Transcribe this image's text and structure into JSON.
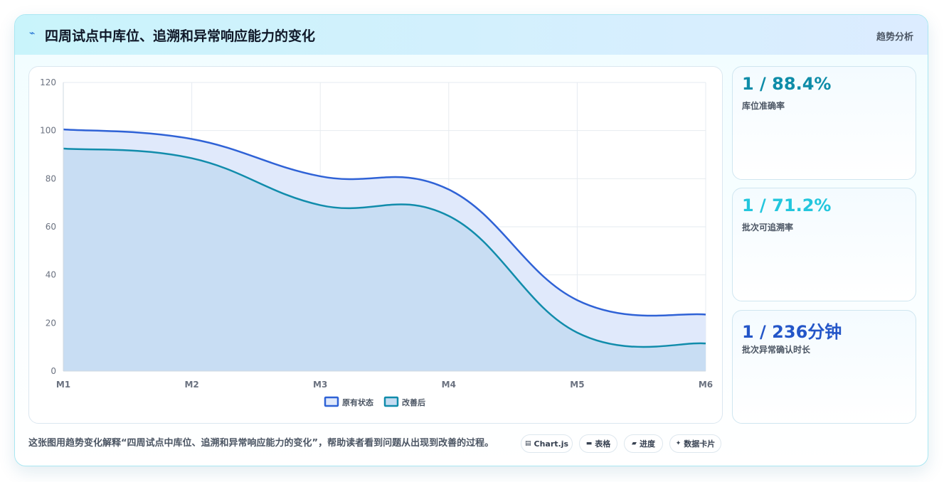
{
  "header": {
    "icon": "sparkle-icon",
    "title": "四周试点中库位、追溯和异常响应能力的变化",
    "tag": "趋势分析"
  },
  "chart_data": {
    "type": "area",
    "title": "",
    "xlabel": "",
    "ylabel": "",
    "categories": [
      "M1",
      "M2",
      "M3",
      "M4",
      "M5",
      "M6"
    ],
    "ylim": [
      0,
      120
    ],
    "yticks": [
      0,
      20,
      40,
      60,
      80,
      100,
      120
    ],
    "grid": true,
    "legend": "bottom",
    "series": [
      {
        "name": "原有状态",
        "values": [
          100.5,
          96.5,
          81,
          75.5,
          29.5,
          23.5
        ],
        "color": "#2f62d6",
        "fill": "#e0e9fb"
      },
      {
        "name": "改善后",
        "values": [
          92.5,
          88.5,
          69,
          64.5,
          16,
          11.5
        ],
        "color": "#118cab",
        "fill": "#c5dcf2"
      }
    ]
  },
  "kpis": [
    {
      "value": "1 / 88.4%",
      "label": "库位准确率",
      "color": "#0e8ca8"
    },
    {
      "value": "1 / 71.2%",
      "label": "批次可追溯率",
      "color": "#23c6dd"
    },
    {
      "value": "1 / 236分钟",
      "label": "批次异常确认时长",
      "color": "#2456c8"
    }
  ],
  "footer": {
    "description": "这张图用趋势变化解释“四周试点中库位、追溯和异常响应能力的变化”，帮助读者看到问题从出现到改善的过程。",
    "chips": [
      {
        "icon": "chart-icon",
        "glyph": "▤",
        "label": "Chart.js"
      },
      {
        "icon": "table-icon",
        "glyph": "▬",
        "label": "表格"
      },
      {
        "icon": "progress-icon",
        "glyph": "▰",
        "label": "进度"
      },
      {
        "icon": "sparkle-icon",
        "glyph": "✦",
        "label": "数据卡片"
      }
    ]
  }
}
